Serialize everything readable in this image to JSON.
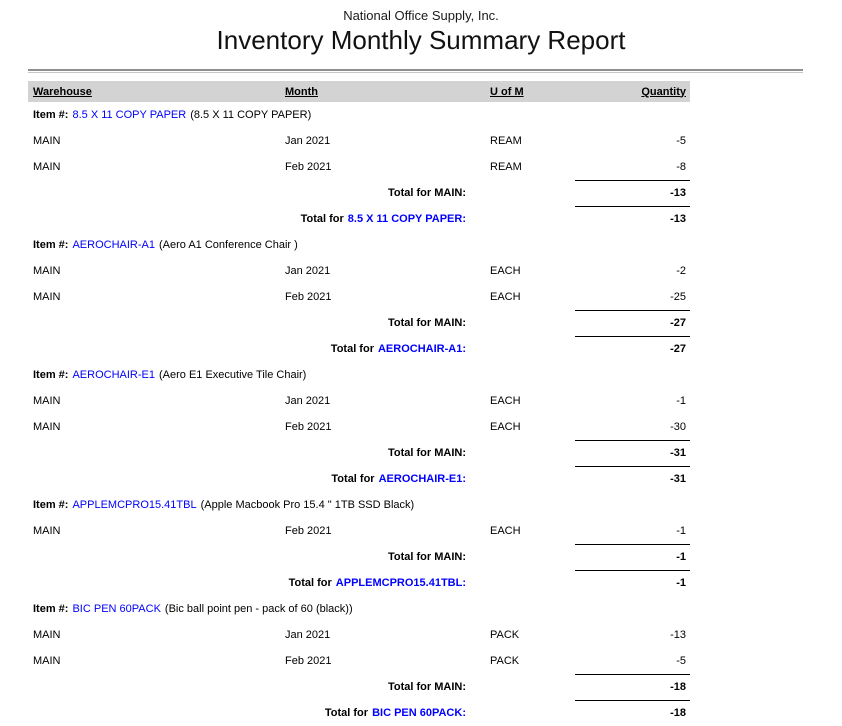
{
  "report": {
    "company_name": "National Office Supply, Inc.",
    "title": "Inventory Monthly Summary Report",
    "columns": {
      "warehouse": "Warehouse",
      "month": "Month",
      "uom": "U of M",
      "quantity": "Quantity"
    },
    "labels": {
      "item_prefix": "Item #:",
      "total_for": "Total for",
      "colon": ":"
    },
    "colors": {
      "item_link_blue": "#0000FF",
      "header_band_gray": "#D3D3D3"
    },
    "items": [
      {
        "code": "8.5 X 11 COPY PAPER",
        "description": "(8.5 X 11 COPY PAPER)",
        "rows": [
          {
            "warehouse": "MAIN",
            "month": "Jan 2021",
            "uom": "REAM",
            "quantity": "-5"
          },
          {
            "warehouse": "MAIN",
            "month": "Feb 2021",
            "uom": "REAM",
            "quantity": "-8"
          }
        ],
        "warehouse_total": {
          "label": "Total for MAIN:",
          "value": "-13"
        },
        "item_total": {
          "value": "-13"
        }
      },
      {
        "code": "AEROCHAIR-A1",
        "description": "(Aero A1 Conference Chair )",
        "rows": [
          {
            "warehouse": "MAIN",
            "month": "Jan 2021",
            "uom": "EACH",
            "quantity": "-2"
          },
          {
            "warehouse": "MAIN",
            "month": "Feb 2021",
            "uom": "EACH",
            "quantity": "-25"
          }
        ],
        "warehouse_total": {
          "label": "Total for MAIN:",
          "value": "-27"
        },
        "item_total": {
          "value": "-27"
        }
      },
      {
        "code": "AEROCHAIR-E1",
        "description": "(Aero E1 Executive Tile Chair)",
        "rows": [
          {
            "warehouse": "MAIN",
            "month": "Jan 2021",
            "uom": "EACH",
            "quantity": "-1"
          },
          {
            "warehouse": "MAIN",
            "month": "Feb 2021",
            "uom": "EACH",
            "quantity": "-30"
          }
        ],
        "warehouse_total": {
          "label": "Total for MAIN:",
          "value": "-31"
        },
        "item_total": {
          "value": "-31"
        }
      },
      {
        "code": "APPLEMCPRO15.41TBL",
        "description": "(Apple Macbook Pro 15.4 \" 1TB SSD Black)",
        "rows": [
          {
            "warehouse": "MAIN",
            "month": "Feb 2021",
            "uom": "EACH",
            "quantity": "-1"
          }
        ],
        "warehouse_total": {
          "label": "Total for MAIN:",
          "value": "-1"
        },
        "item_total": {
          "value": "-1"
        }
      },
      {
        "code": "BIC PEN 60PACK",
        "description": "(Bic ball point pen - pack of 60 (black))",
        "rows": [
          {
            "warehouse": "MAIN",
            "month": "Jan 2021",
            "uom": "PACK",
            "quantity": "-13"
          },
          {
            "warehouse": "MAIN",
            "month": "Feb 2021",
            "uom": "PACK",
            "quantity": "-5"
          }
        ],
        "warehouse_total": {
          "label": "Total for MAIN:",
          "value": "-18"
        },
        "item_total": {
          "value": "-18"
        }
      }
    ]
  }
}
